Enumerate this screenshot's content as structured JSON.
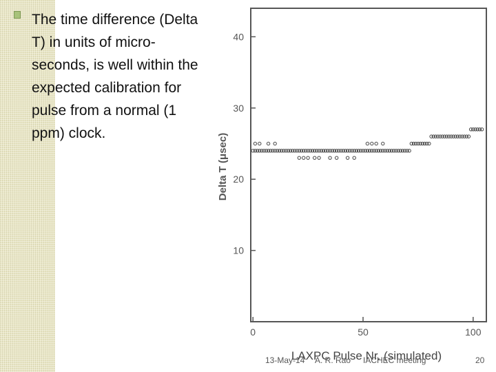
{
  "slide": {
    "bullet_text": "The time difference (Delta T) in units of micro-seconds, is well within the expected calibration for pulse from a normal (1 ppm) clock."
  },
  "footer": {
    "date": "13-May-14",
    "author": "A. R. Rao",
    "event": "IACHEC meeting",
    "page": "20"
  },
  "colors": {
    "texture": "#e9e6c6",
    "bullet": "#a8c27a",
    "marker": "#444444"
  },
  "chart_data": {
    "type": "scatter",
    "title": "",
    "xlabel": "LAXPC Pulse Nr. (simulated)",
    "ylabel": "Delta T (μsec)",
    "xlim": [
      -1,
      106
    ],
    "ylim": [
      0,
      44
    ],
    "xticks": [
      0,
      50,
      100
    ],
    "yticks": [
      10,
      20,
      30,
      40
    ],
    "grid": false,
    "marker": "circle-open",
    "series": [
      {
        "x": [
          0,
          1,
          2,
          3,
          4,
          5,
          6,
          7,
          8,
          9,
          10,
          11,
          12,
          13,
          14,
          15,
          16,
          17,
          18,
          19,
          20,
          21,
          22,
          23,
          24,
          25,
          26,
          27,
          28,
          29,
          30,
          31,
          32,
          33,
          34,
          35,
          36,
          37,
          38,
          39,
          40,
          41,
          42,
          43,
          44,
          45,
          46,
          47,
          48,
          49,
          50,
          51,
          52,
          53,
          54,
          55,
          56,
          57,
          58,
          59,
          60,
          61,
          62,
          63,
          64,
          65,
          66,
          67,
          68,
          69,
          70,
          71,
          72,
          73,
          74,
          75,
          76,
          77,
          78,
          79,
          80,
          81,
          82,
          83,
          84,
          85,
          86,
          87,
          88,
          89,
          90,
          91,
          92,
          93,
          94,
          95,
          96,
          97,
          98,
          99,
          100,
          101,
          102,
          103,
          104,
          1,
          3,
          7,
          10,
          21,
          23,
          25,
          28,
          30,
          35,
          38,
          43,
          46,
          52,
          54,
          56,
          59
        ],
        "y": [
          24,
          24,
          24,
          24,
          24,
          24,
          24,
          24,
          24,
          24,
          24,
          24,
          24,
          24,
          24,
          24,
          24,
          24,
          24,
          24,
          24,
          24,
          24,
          24,
          24,
          24,
          24,
          24,
          24,
          24,
          24,
          24,
          24,
          24,
          24,
          24,
          24,
          24,
          24,
          24,
          24,
          24,
          24,
          24,
          24,
          24,
          24,
          24,
          24,
          24,
          24,
          24,
          24,
          24,
          24,
          24,
          24,
          24,
          24,
          24,
          24,
          24,
          24,
          24,
          24,
          24,
          24,
          24,
          24,
          24,
          24,
          24,
          25,
          25,
          25,
          25,
          25,
          25,
          25,
          25,
          25,
          26,
          26,
          26,
          26,
          26,
          26,
          26,
          26,
          26,
          26,
          26,
          26,
          26,
          26,
          26,
          26,
          26,
          26,
          27,
          27,
          27,
          27,
          27,
          27,
          25,
          25,
          25,
          25,
          23,
          23,
          23,
          23,
          23,
          23,
          23,
          23,
          23,
          25,
          25,
          25,
          25
        ]
      }
    ]
  }
}
